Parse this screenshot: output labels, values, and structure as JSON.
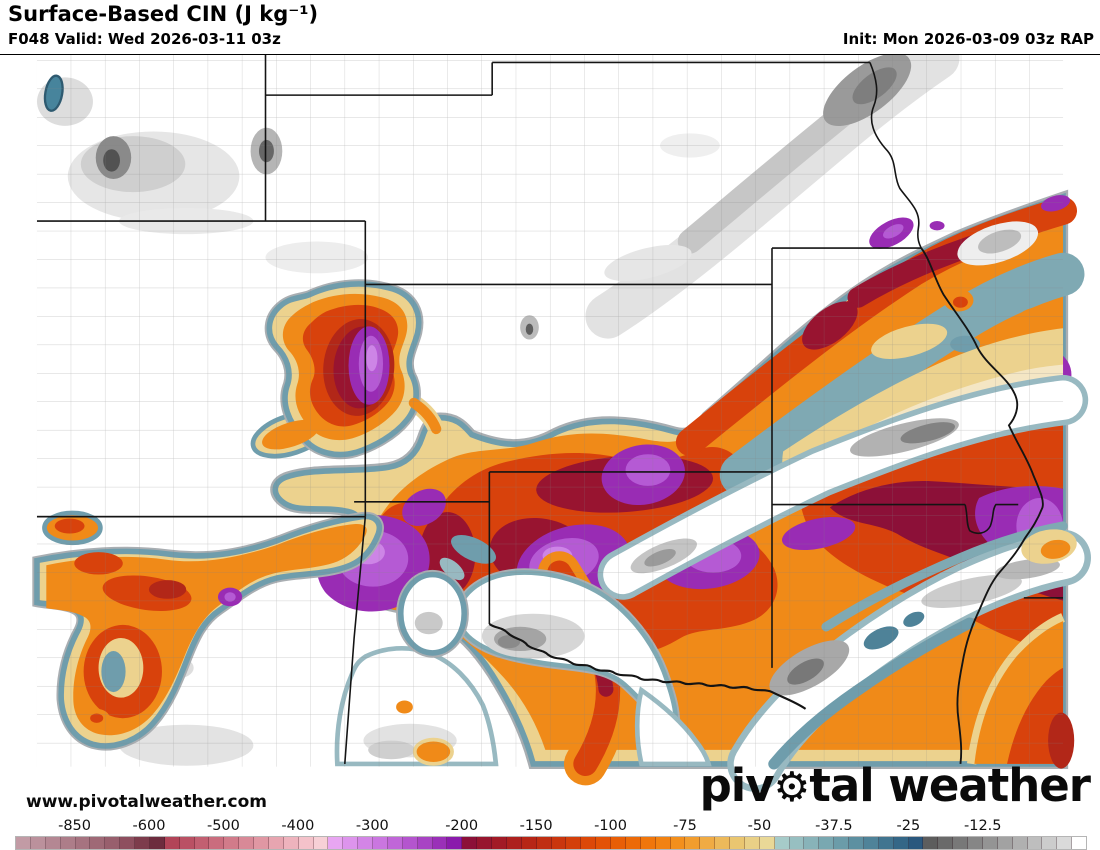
{
  "header": {
    "title": "Surface-Based CIN (J kg⁻¹)",
    "valid": "F048 Valid: Wed 2026-03-11 03z",
    "init": "Init: Mon 2026-03-09 03z RAP"
  },
  "watermark": "www.pivotalweather.com",
  "logo": {
    "pre": "piv",
    "gear": "⚙︎",
    "post": "tal weather"
  },
  "colorbar": {
    "unit": "J kg⁻¹",
    "ticks": [
      {
        "label": "-850",
        "boundary": 4
      },
      {
        "label": "-600",
        "boundary": 9
      },
      {
        "label": "-500",
        "boundary": 14
      },
      {
        "label": "-400",
        "boundary": 19
      },
      {
        "label": "-300",
        "boundary": 24
      },
      {
        "label": "-200",
        "boundary": 30
      },
      {
        "label": "-150",
        "boundary": 35
      },
      {
        "label": "-100",
        "boundary": 40
      },
      {
        "label": "-75",
        "boundary": 45
      },
      {
        "label": "-50",
        "boundary": 50
      },
      {
        "label": "-37.5",
        "boundary": 55
      },
      {
        "label": "-25",
        "boundary": 60
      },
      {
        "label": "-12.5",
        "boundary": 65
      }
    ],
    "cells": [
      "#c29ba5",
      "#bb919c",
      "#b48793",
      "#ad7d89",
      "#a67380",
      "#9f6976",
      "#985f6d",
      "#8e4f5f",
      "#7d3c4c",
      "#6d2c3e",
      "#b24458",
      "#ba5164",
      "#c25f71",
      "#ca6d7e",
      "#d17b8a",
      "#d88997",
      "#e097a3",
      "#e7a5b0",
      "#eeb3bd",
      "#f4c2ca",
      "#f7d0d6",
      "#e8a6f2",
      "#dd94ec",
      "#d385e6",
      "#ca76e0",
      "#c066d8",
      "#b455ce",
      "#a843c4",
      "#9a30b8",
      "#8a1bac",
      "#8c1038",
      "#97152e",
      "#a21a26",
      "#ad201e",
      "#b72616",
      "#c02e12",
      "#ca360e",
      "#d33f0b",
      "#dc4808",
      "#e35206",
      "#e85e06",
      "#ec6a08",
      "#f0760c",
      "#f28212",
      "#f38f1c",
      "#f29d2e",
      "#f0ab44",
      "#edb95a",
      "#eac670",
      "#e9d086",
      "#e9d897",
      "#a6cbc9",
      "#97bfc1",
      "#88b3b9",
      "#79a8b1",
      "#6b9ca9",
      "#5d90a1",
      "#4f8399",
      "#417590",
      "#346787",
      "#2a587e",
      "#5d5d5d",
      "#6a6a6a",
      "#787878",
      "#868686",
      "#949494",
      "#a2a2a2",
      "#b0b0b0",
      "#bebebe",
      "#cccccc",
      "#dadada",
      "#ffffff"
    ]
  },
  "palette": {
    "tan": "#ecd28e",
    "cream": "#f4e6c4",
    "orange": "#f08a18",
    "red": "#d8420c",
    "dark_red": "#b22718",
    "crimson": "#981430",
    "dark_crimson": "#8c1038",
    "purple": "#992cb4",
    "bright_purple": "#b55ad4",
    "light_purple": "#cd85e6",
    "steel": "#6f9dac",
    "steel_light": "#98b9c1",
    "steel_dark": "#4e8298",
    "rim": "#a9aeb2",
    "teal": "#47849c"
  }
}
